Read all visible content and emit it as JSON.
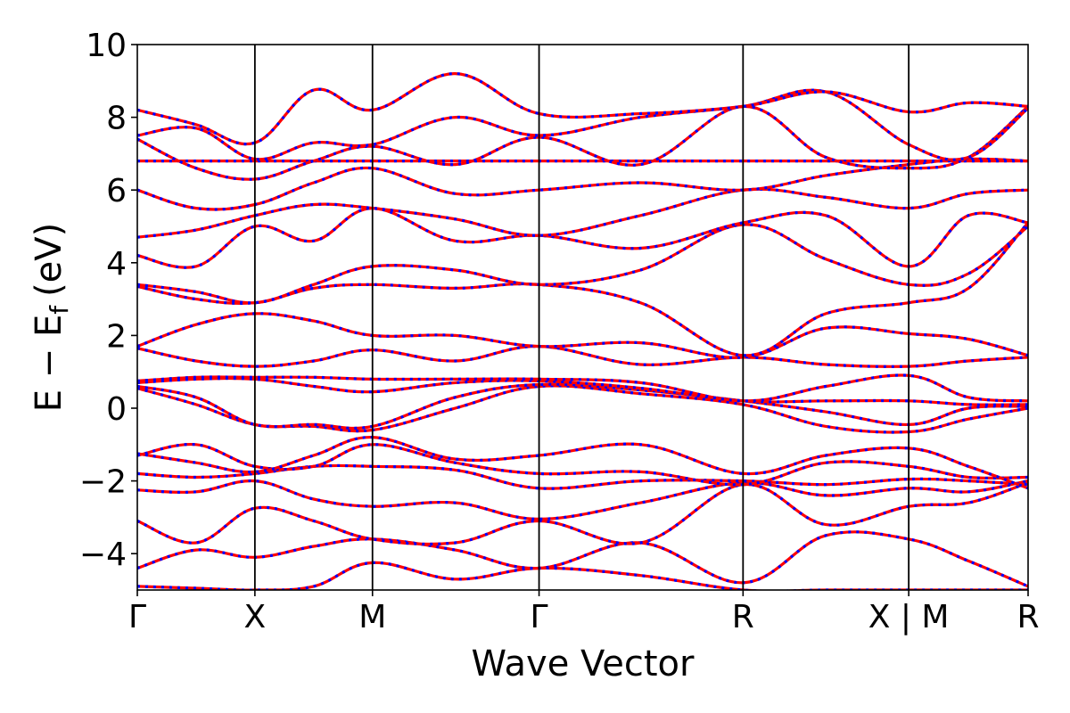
{
  "chart_data": {
    "type": "line",
    "xlabel": "Wave Vector",
    "ylabel": "E − E",
    "ylabel_subscript": "f",
    "ylabel_unit": "(eV)",
    "ylim": [
      -5,
      10
    ],
    "yticks": [
      -4,
      -2,
      0,
      2,
      4,
      6,
      8,
      10
    ],
    "ytick_labels": [
      "−4",
      "−2",
      "0",
      "2",
      "4",
      "6",
      "8",
      "10"
    ],
    "xlim": [
      0,
      1
    ],
    "kpoints": [
      {
        "label": "Γ",
        "x": 0.0
      },
      {
        "label": "X",
        "x": 0.132
      },
      {
        "label": "M",
        "x": 0.264
      },
      {
        "label": "Γ",
        "x": 0.451
      },
      {
        "label": "R",
        "x": 0.68
      },
      {
        "label": "X | M",
        "x": 0.866
      },
      {
        "label": "R",
        "x": 1.0
      }
    ],
    "grid": false,
    "legend": "none",
    "series_colors": {
      "solid": "#ff0000",
      "dashed": "#0000ff"
    },
    "bands": [
      {
        "x": [
          0,
          0.066,
          0.132,
          0.198,
          0.264,
          0.357,
          0.451,
          0.565,
          0.68,
          0.773,
          0.866,
          0.933,
          1.0
        ],
        "y": [
          -4.9,
          -4.95,
          -5.0,
          -4.9,
          -4.25,
          -4.7,
          -4.4,
          -4.6,
          -5.0,
          -5.0,
          -5.0,
          -5.0,
          -5.0
        ]
      },
      {
        "x": [
          0,
          0.066,
          0.132,
          0.198,
          0.264,
          0.357,
          0.451,
          0.565,
          0.68,
          0.773,
          0.866,
          0.933,
          1.0
        ],
        "y": [
          -4.4,
          -3.9,
          -4.1,
          -3.8,
          -3.6,
          -3.9,
          -4.4,
          -3.7,
          -4.8,
          -3.5,
          -3.6,
          -4.2,
          -4.9
        ]
      },
      {
        "x": [
          0,
          0.066,
          0.132,
          0.198,
          0.264,
          0.357,
          0.451,
          0.565,
          0.68,
          0.773,
          0.866,
          0.933,
          1.0
        ],
        "y": [
          -3.1,
          -3.7,
          -2.75,
          -3.1,
          -3.6,
          -3.7,
          -3.1,
          -3.7,
          -2.1,
          -3.2,
          -2.7,
          -2.6,
          -2.05
        ]
      },
      {
        "x": [
          0,
          0.066,
          0.132,
          0.198,
          0.264,
          0.357,
          0.451,
          0.565,
          0.68,
          0.773,
          0.866,
          0.933,
          1.0
        ],
        "y": [
          -2.25,
          -2.3,
          -2.0,
          -2.5,
          -2.7,
          -2.6,
          -3.05,
          -2.6,
          -2.05,
          -2.4,
          -2.2,
          -2.3,
          -2.0
        ]
      },
      {
        "x": [
          0,
          0.066,
          0.132,
          0.198,
          0.264,
          0.357,
          0.451,
          0.565,
          0.68,
          0.773,
          0.866,
          0.933,
          1.0
        ],
        "y": [
          -1.8,
          -1.9,
          -1.8,
          -1.6,
          -1.6,
          -1.7,
          -2.2,
          -2.0,
          -2.0,
          -2.1,
          -1.95,
          -2.0,
          -2.1
        ]
      },
      {
        "x": [
          0,
          0.066,
          0.132,
          0.198,
          0.264,
          0.357,
          0.451,
          0.565,
          0.68,
          0.773,
          0.866,
          0.933,
          1.0
        ],
        "y": [
          -1.3,
          -1.0,
          -1.6,
          -1.6,
          -1.0,
          -1.5,
          -1.8,
          -1.75,
          -2.1,
          -1.5,
          -1.6,
          -1.9,
          -1.9
        ]
      },
      {
        "x": [
          0,
          0.066,
          0.132,
          0.198,
          0.264,
          0.357,
          0.451,
          0.565,
          0.68,
          0.773,
          0.866,
          0.933,
          1.0
        ],
        "y": [
          -1.25,
          -1.5,
          -1.75,
          -1.3,
          -0.8,
          -1.4,
          -1.3,
          -1.0,
          -1.8,
          -1.3,
          -1.1,
          -1.6,
          -2.2
        ]
      },
      {
        "x": [
          0,
          0.066,
          0.132,
          0.198,
          0.264,
          0.357,
          0.451,
          0.565,
          0.68,
          0.773,
          0.866,
          0.933,
          1.0
        ],
        "y": [
          0.55,
          0.1,
          -0.45,
          -0.5,
          -0.6,
          0.0,
          0.6,
          0.4,
          0.1,
          -0.5,
          -0.65,
          -0.3,
          0.0
        ]
      },
      {
        "x": [
          0,
          0.066,
          0.132,
          0.198,
          0.264,
          0.357,
          0.451,
          0.565,
          0.68,
          0.773,
          0.866,
          0.933,
          1.0
        ],
        "y": [
          0.6,
          0.3,
          -0.45,
          -0.45,
          -0.5,
          0.3,
          0.65,
          0.5,
          0.2,
          -0.1,
          -0.45,
          0.0,
          0.05
        ]
      },
      {
        "x": [
          0,
          0.066,
          0.132,
          0.198,
          0.264,
          0.357,
          0.451,
          0.565,
          0.68,
          0.773,
          0.866,
          0.933,
          1.0
        ],
        "y": [
          0.7,
          0.8,
          0.8,
          0.6,
          0.45,
          0.7,
          0.75,
          0.55,
          0.2,
          0.2,
          0.2,
          0.1,
          0.1
        ]
      },
      {
        "x": [
          0,
          0.066,
          0.132,
          0.198,
          0.264,
          0.357,
          0.451,
          0.565,
          0.68,
          0.773,
          0.866,
          0.933,
          1.0
        ],
        "y": [
          0.75,
          0.85,
          0.85,
          0.85,
          0.8,
          0.8,
          0.8,
          0.7,
          0.2,
          0.6,
          0.9,
          0.3,
          0.2
        ]
      },
      {
        "x": [
          0,
          0.066,
          0.132,
          0.198,
          0.264,
          0.357,
          0.451,
          0.565,
          0.68,
          0.773,
          0.866,
          0.933,
          1.0
        ],
        "y": [
          1.65,
          1.3,
          1.15,
          1.3,
          1.6,
          1.3,
          1.7,
          1.2,
          1.4,
          1.2,
          1.15,
          1.3,
          1.4
        ]
      },
      {
        "x": [
          0,
          0.066,
          0.132,
          0.198,
          0.264,
          0.357,
          0.451,
          0.565,
          0.68,
          0.773,
          0.866,
          0.933,
          1.0
        ],
        "y": [
          1.7,
          2.3,
          2.6,
          2.4,
          2.0,
          2.0,
          1.7,
          1.8,
          1.4,
          2.2,
          2.05,
          1.9,
          1.45
        ]
      },
      {
        "x": [
          0,
          0.066,
          0.132,
          0.198,
          0.264,
          0.357,
          0.451,
          0.565,
          0.68,
          0.773,
          0.866,
          0.933,
          1.0
        ],
        "y": [
          3.35,
          3.0,
          2.9,
          3.3,
          3.4,
          3.3,
          3.4,
          2.9,
          1.45,
          2.6,
          2.9,
          3.3,
          5.1
        ]
      },
      {
        "x": [
          0,
          0.066,
          0.132,
          0.198,
          0.264,
          0.357,
          0.451,
          0.565,
          0.68,
          0.773,
          0.866,
          0.933,
          1.0
        ],
        "y": [
          3.4,
          3.2,
          2.9,
          3.4,
          3.9,
          3.8,
          3.4,
          3.8,
          5.05,
          4.1,
          3.4,
          3.7,
          5.0
        ]
      },
      {
        "x": [
          0,
          0.066,
          0.132,
          0.198,
          0.264,
          0.357,
          0.451,
          0.565,
          0.68,
          0.773,
          0.866,
          0.933,
          1.0
        ],
        "y": [
          4.2,
          3.9,
          5.0,
          4.6,
          5.5,
          4.6,
          4.75,
          4.4,
          5.1,
          5.3,
          3.9,
          5.3,
          5.1
        ]
      },
      {
        "x": [
          0,
          0.066,
          0.132,
          0.198,
          0.264,
          0.357,
          0.451,
          0.565,
          0.68,
          0.773,
          0.866,
          0.933,
          1.0
        ],
        "y": [
          4.7,
          4.9,
          5.3,
          5.6,
          5.5,
          5.2,
          4.75,
          5.3,
          6.0,
          5.8,
          5.5,
          5.9,
          6.0
        ]
      },
      {
        "x": [
          0,
          0.066,
          0.132,
          0.198,
          0.264,
          0.357,
          0.451,
          0.565,
          0.68,
          0.773,
          0.866,
          0.933,
          1.0
        ],
        "y": [
          6.0,
          5.5,
          5.6,
          6.2,
          6.6,
          5.9,
          6.0,
          6.2,
          6.0,
          6.4,
          6.7,
          6.85,
          6.8
        ]
      },
      {
        "x": [
          0,
          0.066,
          0.132,
          0.198,
          0.264,
          0.357,
          0.451,
          0.565,
          0.68,
          0.773,
          0.866,
          0.933,
          1.0
        ],
        "y": [
          6.8,
          6.8,
          6.8,
          6.8,
          6.8,
          6.8,
          6.8,
          6.8,
          6.8,
          6.8,
          6.8,
          6.8,
          6.8
        ]
      },
      {
        "x": [
          0,
          0.066,
          0.132,
          0.198,
          0.264,
          0.357,
          0.451,
          0.565,
          0.68,
          0.773,
          0.866,
          0.933,
          1.0
        ],
        "y": [
          7.4,
          6.6,
          6.3,
          6.8,
          7.2,
          6.7,
          7.45,
          6.7,
          8.3,
          6.9,
          6.6,
          6.9,
          8.3
        ]
      },
      {
        "x": [
          0,
          0.066,
          0.132,
          0.198,
          0.264,
          0.357,
          0.451,
          0.565,
          0.68,
          0.773,
          0.866,
          0.933,
          1.0
        ],
        "y": [
          7.5,
          7.7,
          6.85,
          7.3,
          7.25,
          8.0,
          7.5,
          8.0,
          8.3,
          8.7,
          7.25,
          6.9,
          8.25
        ]
      },
      {
        "x": [
          0,
          0.066,
          0.132,
          0.198,
          0.264,
          0.357,
          0.451,
          0.565,
          0.68,
          0.773,
          0.866,
          0.933,
          1.0
        ],
        "y": [
          8.2,
          7.8,
          7.3,
          8.75,
          8.2,
          9.2,
          8.1,
          8.1,
          8.3,
          8.7,
          8.15,
          8.4,
          8.3
        ]
      }
    ]
  }
}
